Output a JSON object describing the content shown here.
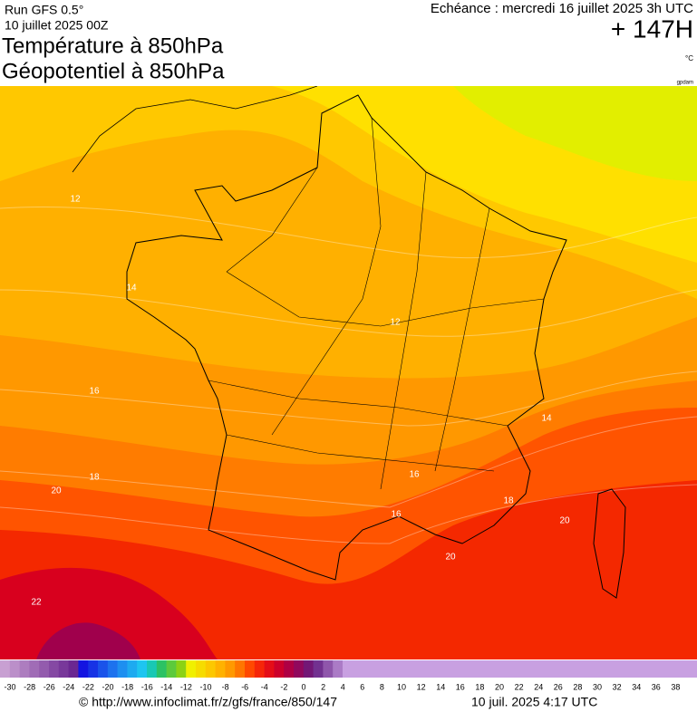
{
  "header": {
    "run": "Run GFS 0.5°",
    "date": "10 juillet 2025 00Z",
    "title1": "Température à 850hPa",
    "title2": "Géopotentiel à 850hPa",
    "echeance": "Echéance : mercredi 16 juillet 2025 3h UTC",
    "horizon": "+ 147H",
    "unit": "°C",
    "source_tag": "gpdam"
  },
  "map": {
    "contour_labels": [
      "12",
      "14",
      "16",
      "18",
      "20",
      "22",
      "12",
      "14",
      "16",
      "18",
      "20",
      "20",
      "16"
    ]
  },
  "colorbar": {
    "ticks": [
      -30,
      -28,
      -26,
      -24,
      -22,
      -20,
      -18,
      -16,
      -14,
      -12,
      -10,
      -8,
      -6,
      -4,
      -2,
      0,
      2,
      4,
      6,
      8,
      10,
      12,
      14,
      16,
      18,
      20,
      22,
      24,
      26,
      28,
      30,
      32,
      34,
      36,
      38
    ]
  },
  "footer": {
    "url": "© http://www.infoclimat.fr/z/gfs/france/850/147",
    "timestamp": "10 juil. 2025  4:17 UTC"
  }
}
